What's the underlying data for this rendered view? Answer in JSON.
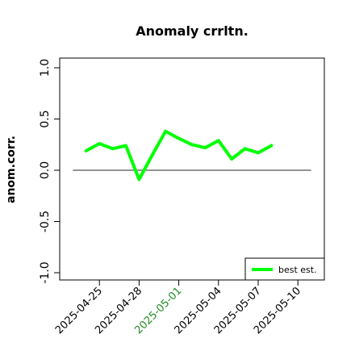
{
  "chart_data": {
    "type": "line",
    "title": "Anomaly crrltn.",
    "xlabel": "",
    "ylabel": "anom.corr.",
    "ylim": [
      -1.0,
      1.0
    ],
    "yticks": [
      "-1.0",
      "-0.5",
      "0.0",
      "0.5",
      "1.0"
    ],
    "xlim": [
      "2025-04-22",
      "2025-05-12"
    ],
    "xticks": [
      "2025-04-25",
      "2025-04-28",
      "2025-05-01",
      "2025-05-04",
      "2025-05-07",
      "2025-05-10"
    ],
    "highlight_tick": "2025-05-01",
    "highlight_color": "#228b22",
    "reference_line": {
      "y": 0.0,
      "x_start": "2025-04-23",
      "x_end": "2025-05-11",
      "color": "#555555"
    },
    "grid": false,
    "legend_position": "bottom-right",
    "series": [
      {
        "name": "best est.",
        "color": "#00ff00",
        "x": [
          "2025-04-24",
          "2025-04-25",
          "2025-04-26",
          "2025-04-27",
          "2025-04-28",
          "2025-04-29",
          "2025-04-30",
          "2025-05-01",
          "2025-05-02",
          "2025-05-03",
          "2025-05-04",
          "2025-05-05",
          "2025-05-06",
          "2025-05-07",
          "2025-05-08"
        ],
        "y": [
          0.19,
          0.26,
          0.21,
          0.24,
          -0.09,
          0.15,
          0.38,
          0.31,
          0.25,
          0.22,
          0.29,
          0.11,
          0.21,
          0.17,
          0.24
        ]
      }
    ]
  }
}
